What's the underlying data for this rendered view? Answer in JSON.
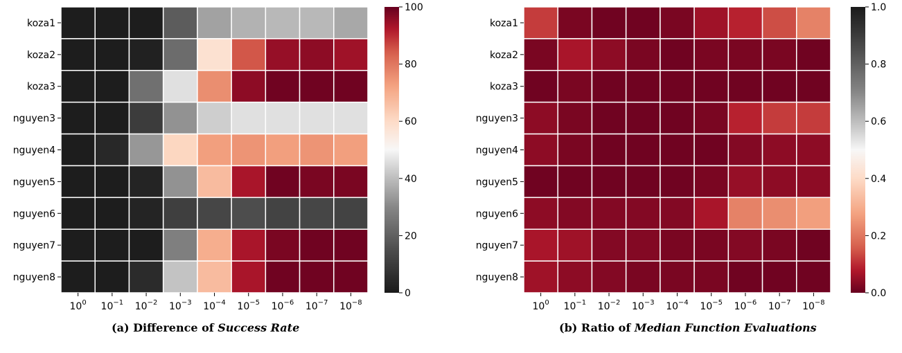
{
  "colors": {
    "low": "#1a1a1a",
    "mid": "#f7f7f7",
    "high": "#67001f",
    "cell_border": "#ffffff"
  },
  "captions": {
    "a": {
      "prefix": "(a) Difference of ",
      "emph": "Success Rate"
    },
    "b": {
      "prefix": "(b) Ratio of ",
      "emph": "Median Function Evaluations"
    }
  },
  "chart_data": [
    {
      "type": "heatmap",
      "title": "",
      "xlabel": "",
      "ylabel": "",
      "x_categories": [
        "0",
        "-1",
        "-2",
        "-3",
        "-4",
        "-5",
        "-6",
        "-7",
        "-8"
      ],
      "x_tick_base": "10",
      "y_categories": [
        "koza1",
        "koza2",
        "koza3",
        "nguyen3",
        "nguyen4",
        "nguyen5",
        "nguyen6",
        "nguyen7",
        "nguyen8"
      ],
      "colormap": "RdGy reversed (0 = black, midpoint = white, max = dark red)",
      "vmin": 0,
      "vmax": 100,
      "colorbar_ticks": [
        "0",
        "20",
        "40",
        "60",
        "80",
        "100"
      ],
      "values": [
        [
          1,
          1,
          1,
          19,
          35,
          38,
          39,
          39,
          36
        ],
        [
          1,
          1,
          2,
          23,
          58,
          85,
          95,
          96,
          94
        ],
        [
          1,
          1,
          24,
          46,
          76,
          96,
          99,
          99,
          99
        ],
        [
          1,
          1,
          10,
          32,
          43,
          46,
          46,
          46,
          46
        ],
        [
          1,
          4,
          33,
          61,
          73,
          75,
          73,
          75,
          73
        ],
        [
          1,
          1,
          3,
          32,
          67,
          93,
          99,
          98,
          98
        ],
        [
          1,
          1,
          3,
          11,
          13,
          15,
          12,
          13,
          12
        ],
        [
          1,
          1,
          1,
          28,
          70,
          93,
          98,
          99,
          99
        ],
        [
          1,
          1,
          5,
          41,
          67,
          93,
          99,
          99,
          99
        ]
      ]
    },
    {
      "type": "heatmap",
      "title": "",
      "xlabel": "",
      "ylabel": "",
      "x_categories": [
        "0",
        "-1",
        "-2",
        "-3",
        "-4",
        "-5",
        "-6",
        "-7",
        "-8"
      ],
      "x_tick_base": "10",
      "y_categories": [
        "koza1",
        "koza2",
        "koza3",
        "nguyen3",
        "nguyen4",
        "nguyen5",
        "nguyen6",
        "nguyen7",
        "nguyen8"
      ],
      "colormap": "RdGy reversed (0 = dark red, midpoint = white, max = black)",
      "vmin": 0,
      "vmax": 1,
      "colorbar_ticks": [
        "0.0",
        "0.2",
        "0.4",
        "0.6",
        "0.8",
        "1.0"
      ],
      "values": [
        [
          0.12,
          0.02,
          0.01,
          0.01,
          0.02,
          0.06,
          0.09,
          0.14,
          0.22
        ],
        [
          0.02,
          0.07,
          0.04,
          0.02,
          0.01,
          0.02,
          0.02,
          0.02,
          0.01
        ],
        [
          0.01,
          0.02,
          0.01,
          0.01,
          0.01,
          0.01,
          0.01,
          0.01,
          0.01
        ],
        [
          0.04,
          0.02,
          0.01,
          0.01,
          0.01,
          0.02,
          0.09,
          0.12,
          0.12
        ],
        [
          0.04,
          0.02,
          0.01,
          0.01,
          0.01,
          0.01,
          0.03,
          0.04,
          0.04
        ],
        [
          0.01,
          0.01,
          0.01,
          0.01,
          0.01,
          0.02,
          0.05,
          0.04,
          0.04
        ],
        [
          0.04,
          0.03,
          0.03,
          0.03,
          0.03,
          0.07,
          0.22,
          0.24,
          0.27
        ],
        [
          0.07,
          0.06,
          0.03,
          0.03,
          0.02,
          0.02,
          0.03,
          0.02,
          0.01
        ],
        [
          0.06,
          0.04,
          0.03,
          0.02,
          0.02,
          0.02,
          0.01,
          0.01,
          0.01
        ]
      ]
    }
  ]
}
